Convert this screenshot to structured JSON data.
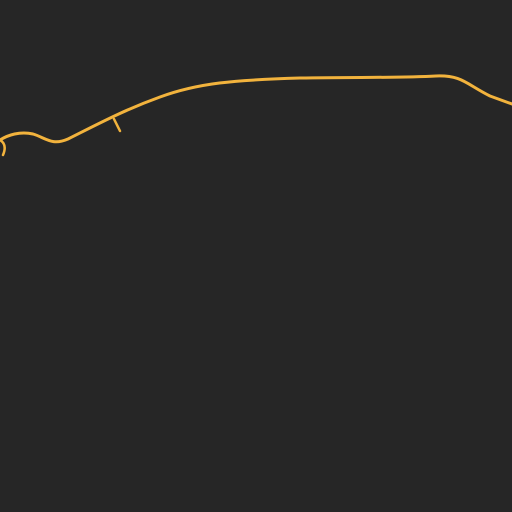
{
  "map": {
    "background_color": "#262626",
    "road_color": "#F2B33D",
    "features": [
      {
        "name": "main-road",
        "kind": "road"
      },
      {
        "name": "road-spur-near-left",
        "kind": "road"
      },
      {
        "name": "road-stub-left-edge",
        "kind": "road"
      }
    ]
  }
}
